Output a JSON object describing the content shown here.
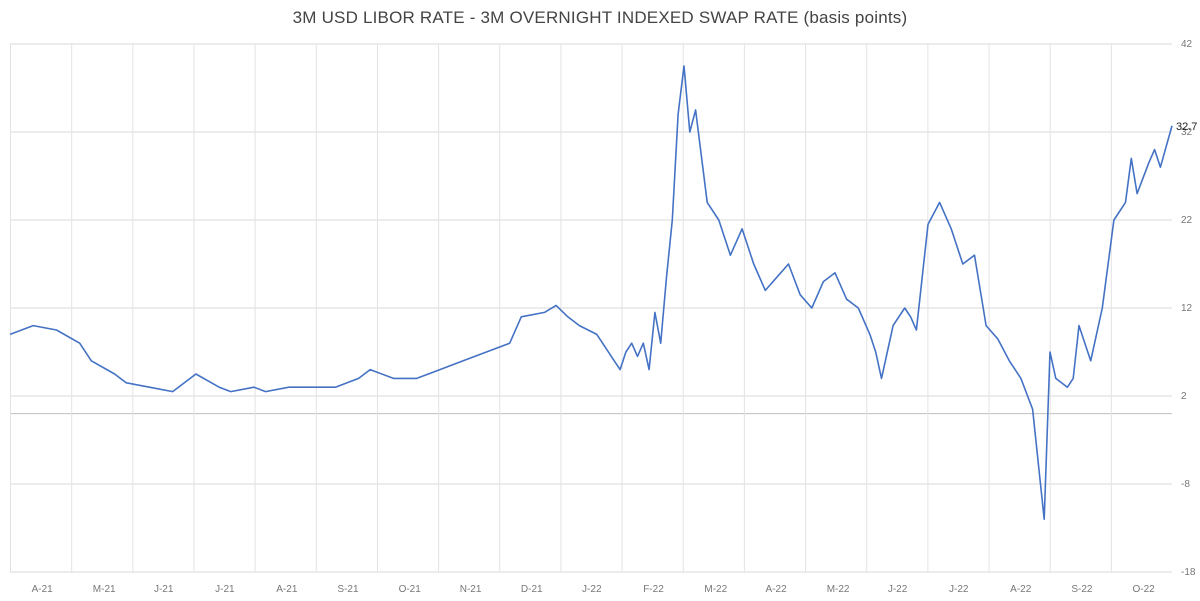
{
  "chart_data": {
    "type": "line",
    "title": "3M USD LIBOR RATE - 3M OVERNIGHT INDEXED SWAP RATE (basis points)",
    "xlabel": "",
    "ylabel": "",
    "ylim": [
      -18,
      42
    ],
    "y_ticks": [
      "42",
      "32",
      "22",
      "12",
      "2",
      "-8",
      "-18"
    ],
    "x_ticks": [
      "A-21",
      "M-21",
      "J-21",
      "J-21",
      "A-21",
      "S-21",
      "O-21",
      "N-21",
      "D-21",
      "J-22",
      "F-22",
      "M-22",
      "A-22",
      "M-22",
      "J-22",
      "J-22",
      "A-22",
      "S-22",
      "O-22"
    ],
    "last_value_label": "32.7",
    "reference_line_y": 0,
    "grid": true,
    "line_color": "#4472C4",
    "x": [
      0,
      0.02,
      0.04,
      0.06,
      0.07,
      0.09,
      0.1,
      0.12,
      0.14,
      0.16,
      0.18,
      0.19,
      0.21,
      0.22,
      0.24,
      0.26,
      0.28,
      0.3,
      0.31,
      0.33,
      0.35,
      0.37,
      0.39,
      0.41,
      0.43,
      0.44,
      0.46,
      0.47,
      0.48,
      0.49,
      0.505,
      0.51,
      0.52,
      0.525,
      0.53,
      0.535,
      0.54,
      0.545,
      0.55,
      0.555,
      0.56,
      0.565,
      0.57,
      0.575,
      0.58,
      0.585,
      0.59,
      0.6,
      0.61,
      0.62,
      0.63,
      0.64,
      0.65,
      0.66,
      0.67,
      0.68,
      0.69,
      0.7,
      0.71,
      0.72,
      0.73,
      0.74,
      0.745,
      0.75,
      0.76,
      0.77,
      0.775,
      0.78,
      0.79,
      0.8,
      0.81,
      0.82,
      0.83,
      0.84,
      0.85,
      0.86,
      0.87,
      0.88,
      0.89,
      0.895,
      0.9,
      0.91,
      0.915,
      0.92,
      0.93,
      0.94,
      0.95,
      0.96,
      0.965,
      0.97,
      0.98,
      0.985,
      0.99,
      1.0
    ],
    "series": [
      {
        "values": [
          9,
          10,
          9.5,
          8,
          6,
          4.5,
          3.5,
          3,
          2.5,
          4.5,
          3,
          2.5,
          3,
          2.5,
          3,
          3,
          3,
          4,
          5,
          4,
          4,
          5,
          6,
          7,
          8,
          11,
          11.5,
          12.3,
          11,
          10,
          9,
          8,
          6,
          5,
          7,
          8,
          6.5,
          8,
          5,
          11.5,
          8,
          15.5,
          22,
          34,
          39.5,
          32,
          34.5,
          24,
          22,
          18,
          21,
          17,
          14,
          15.5,
          17,
          13.5,
          12,
          15,
          16,
          13,
          12,
          9,
          7,
          4,
          10,
          12,
          11,
          9.5,
          21.5,
          24,
          21,
          17,
          18,
          10,
          8.5,
          6,
          4,
          0.5,
          -12,
          7,
          4,
          3,
          4,
          10,
          6,
          12,
          22,
          24,
          29,
          25,
          28.5,
          30,
          28,
          32.7
        ]
      }
    ]
  }
}
